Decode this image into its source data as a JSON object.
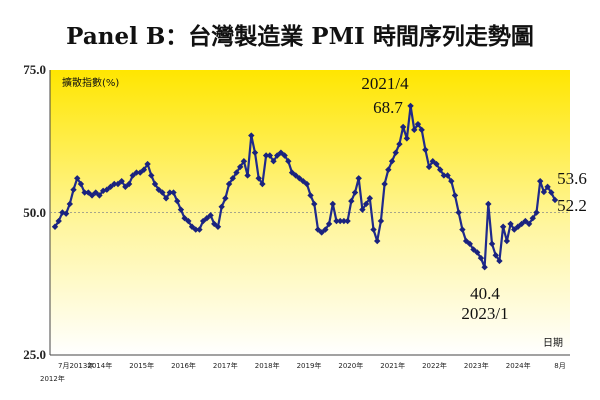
{
  "chart_data": {
    "type": "line",
    "title": "Panel B：台灣製造業 PMI 時間序列走勢圖",
    "ylabel": "擴散指數(%)",
    "xlabel": "日期",
    "ylim": [
      25.0,
      75.0
    ],
    "yticks": [
      "75.0",
      "50.0",
      "25.0"
    ],
    "reference_line": 50.0,
    "grid": false,
    "background": "yellow-to-white vertical gradient",
    "colors": {
      "line": "#1f2a8c",
      "marker": "#1a237e",
      "reference": "#8a8a8a",
      "bg_top": "#ffe600",
      "bg_bottom": "#ffffff"
    },
    "x_tick_labels": [
      "7月2013年",
      "2014年",
      "2015年",
      "2016年",
      "2017年",
      "2018年",
      "2019年",
      "2020年",
      "2021年",
      "2022年",
      "2023年",
      "2024年",
      "8月"
    ],
    "x_tick_sublabel": "2012年",
    "series": [
      {
        "values": [
          47.5,
          48.5,
          50.0,
          49.8,
          51.5,
          54.0,
          56.0,
          55.0,
          53.5,
          53.5,
          53.0,
          53.5,
          53.0,
          53.8,
          54.0,
          54.5,
          55.0,
          55.0,
          55.5,
          54.5,
          55.0,
          56.5,
          57.0,
          57.0,
          57.5,
          58.5,
          56.5,
          55.0,
          54.0,
          53.5,
          52.5,
          53.5,
          53.5,
          52.0,
          50.5,
          49.0,
          48.5,
          47.5,
          47.0,
          47.0,
          48.5,
          49.0,
          49.5,
          48.0,
          47.5,
          51.0,
          52.5,
          55.0,
          56.0,
          57.0,
          58.0,
          59.0,
          56.5,
          63.5,
          60.5,
          56.0,
          55.0,
          60.0,
          60.0,
          59.0,
          60.0,
          60.5,
          60.0,
          59.0,
          57.0,
          56.5,
          56.0,
          55.5,
          55.0,
          53.0,
          51.5,
          47.0,
          46.5,
          47.0,
          48.0,
          51.5,
          48.5,
          48.5,
          48.5,
          48.5,
          52.0,
          53.5,
          56.0,
          50.5,
          51.5,
          52.5,
          47.0,
          45.0,
          48.5,
          55.0,
          57.5,
          59.0,
          60.5,
          62.0,
          65.0,
          63.0,
          68.7,
          64.5,
          65.5,
          64.5,
          61.0,
          58.0,
          59.0,
          58.5,
          57.5,
          56.5,
          56.5,
          55.5,
          53.0,
          50.0,
          47.0,
          45.0,
          44.5,
          43.5,
          43.0,
          42.0,
          40.4,
          51.5,
          44.5,
          42.5,
          41.5,
          47.5,
          45.0,
          48.0,
          47.0,
          47.5,
          48.0,
          48.5,
          48.0,
          49.0,
          50.0,
          55.5,
          53.6,
          54.5,
          53.5,
          52.2
        ]
      }
    ],
    "annotations": {
      "peak_date": "2021/4",
      "peak_value": "68.7",
      "trough_value": "40.4",
      "trough_date": "2023/1",
      "latest_1": "53.6",
      "latest_2": "52.2"
    }
  }
}
